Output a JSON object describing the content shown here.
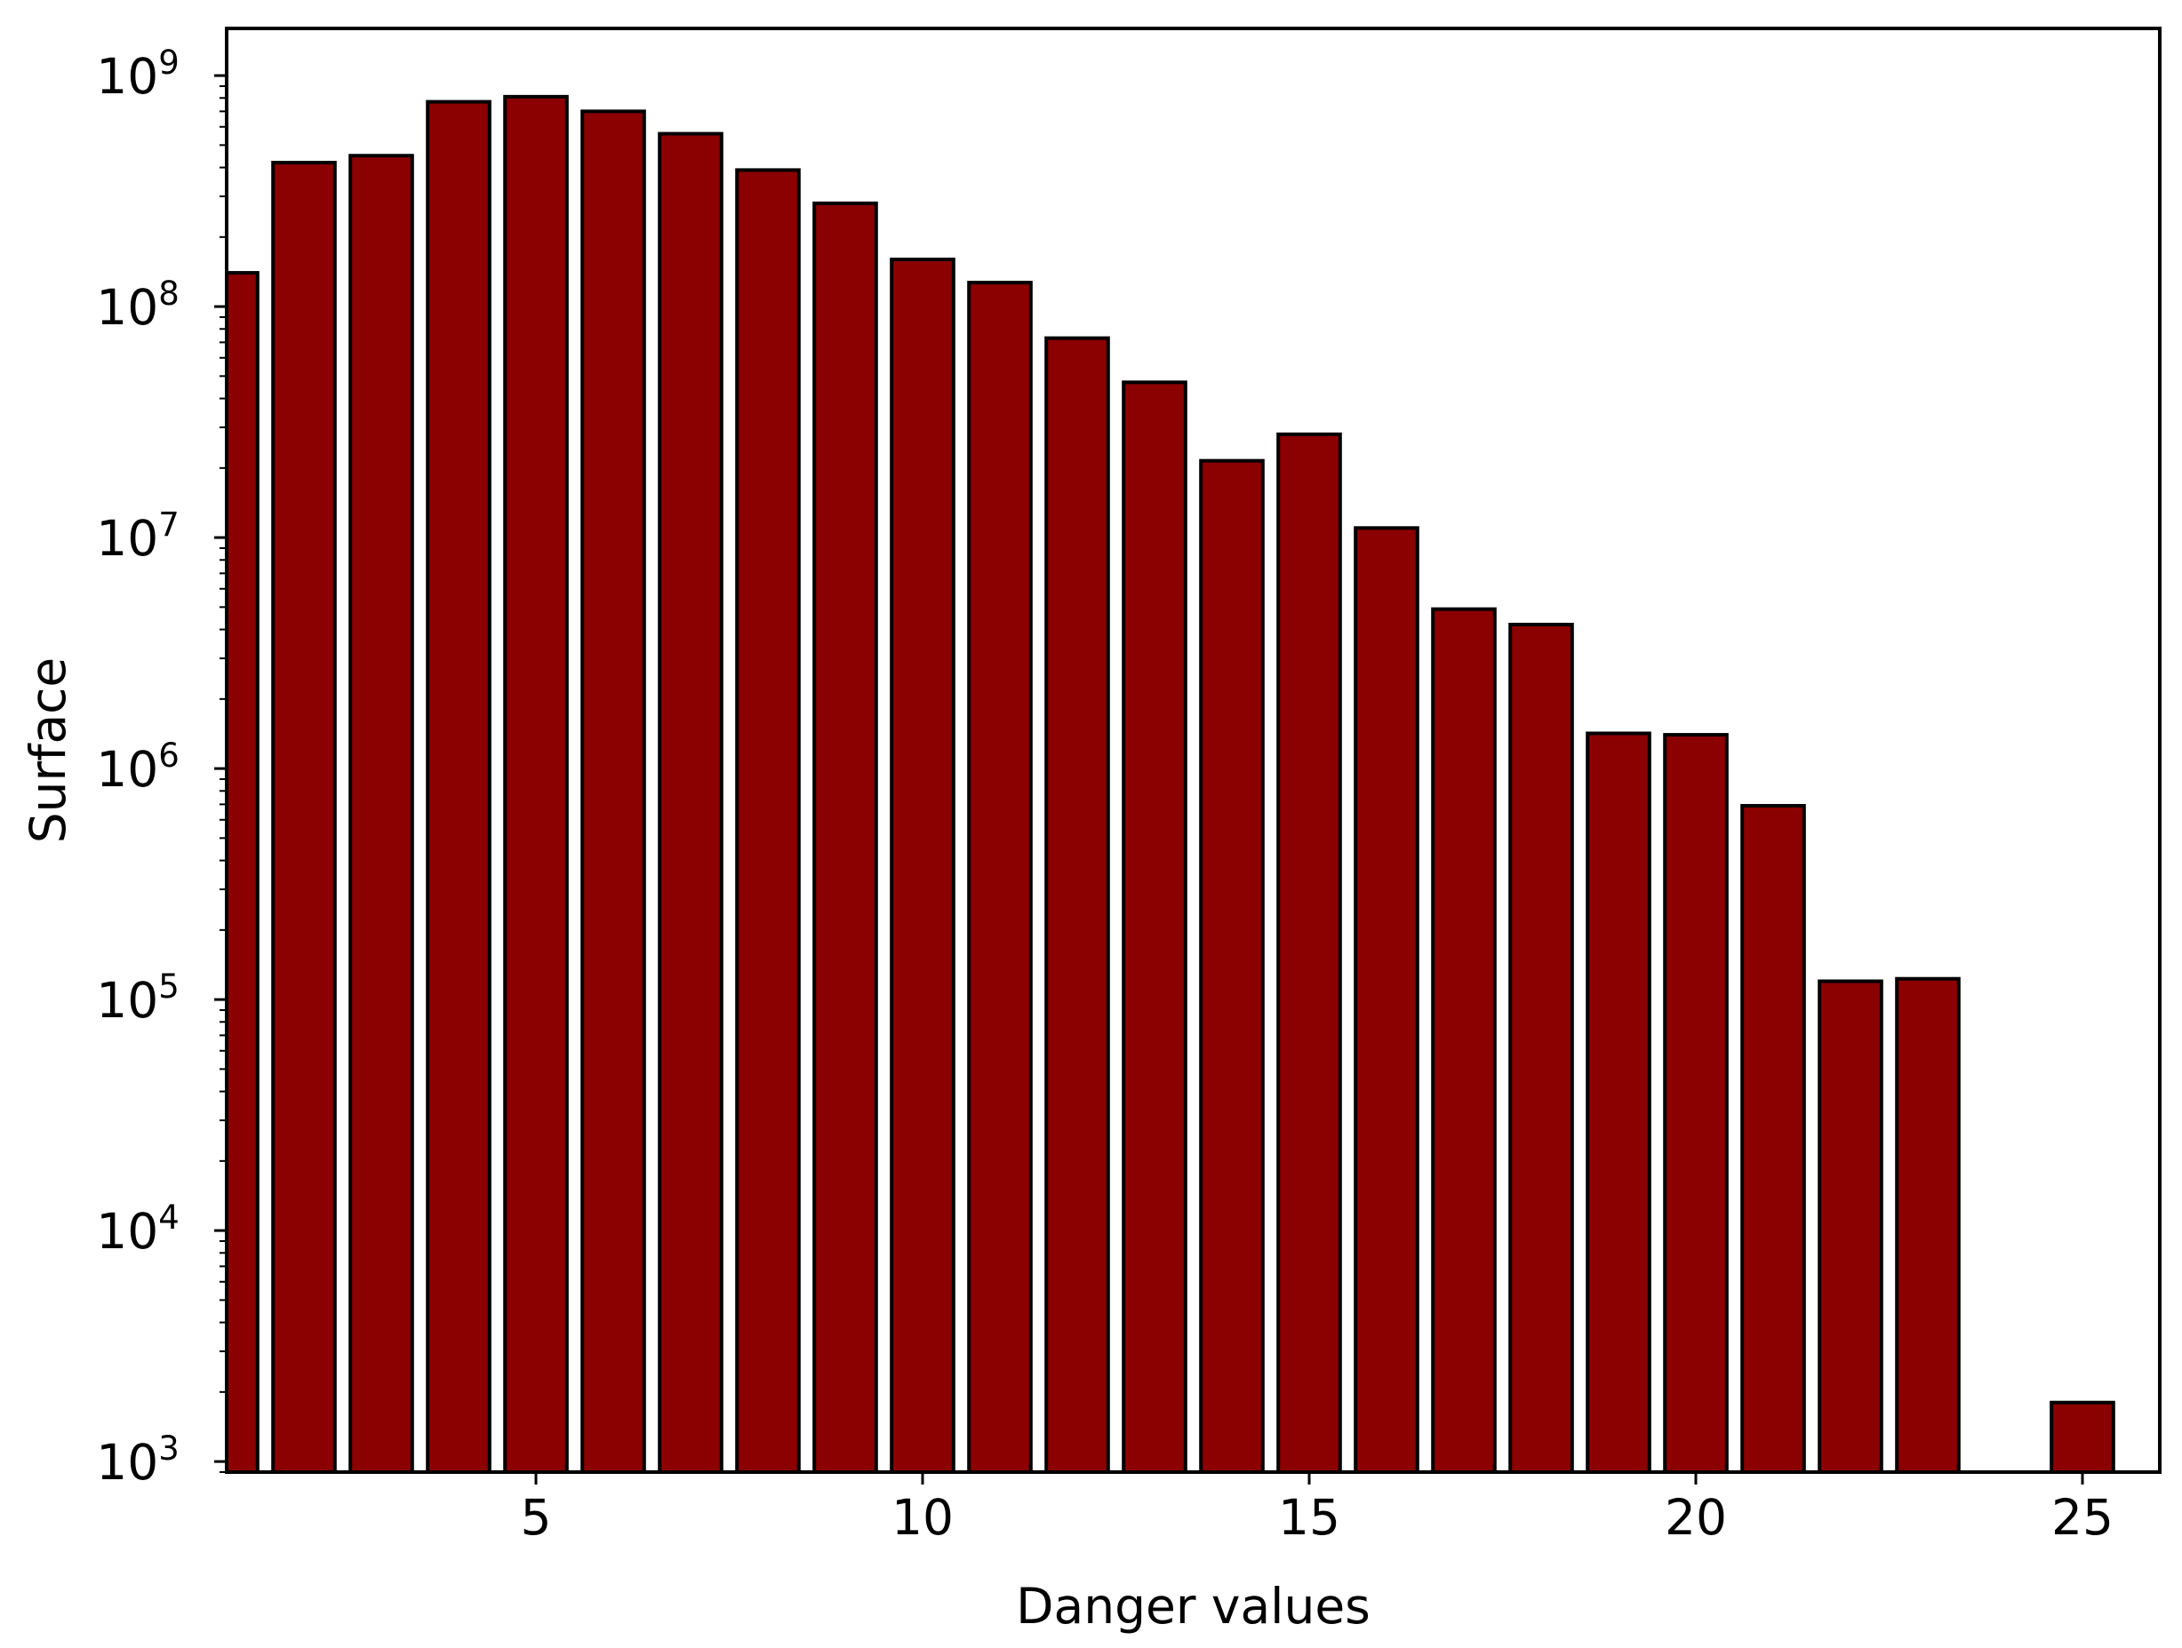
{
  "chart_data": {
    "type": "bar",
    "xlabel": "Danger values",
    "ylabel": "Surface",
    "y_scale": "log",
    "xlim": [
      1,
      26
    ],
    "ylim": [
      900,
      1600000000
    ],
    "x_ticks": [
      5,
      10,
      15,
      20,
      25
    ],
    "y_ticks": [
      {
        "value": 1000,
        "base": "10",
        "exp": "3"
      },
      {
        "value": 10000,
        "base": "10",
        "exp": "4"
      },
      {
        "value": 100000,
        "base": "10",
        "exp": "5"
      },
      {
        "value": 1000000,
        "base": "10",
        "exp": "6"
      },
      {
        "value": 10000000,
        "base": "10",
        "exp": "7"
      },
      {
        "value": 100000000,
        "base": "10",
        "exp": "8"
      },
      {
        "value": 1000000000,
        "base": "10",
        "exp": "9"
      }
    ],
    "grid": false,
    "bar_color": "#8b0000",
    "edge_color": "#000000",
    "x": [
      1,
      2,
      3,
      4,
      5,
      6,
      7,
      8,
      9,
      10,
      11,
      12,
      13,
      14,
      15,
      16,
      17,
      18,
      19,
      20,
      21,
      22,
      23,
      25
    ],
    "values": [
      140000000,
      420000000,
      450000000,
      770000000,
      810000000,
      700000000,
      560000000,
      390000000,
      280000000,
      160000000,
      127000000,
      73000000,
      47000000,
      21500000,
      28000000,
      11000000,
      4900000,
      4200000,
      1420000,
      1400000,
      690000,
      120000,
      123000,
      1800
    ]
  }
}
